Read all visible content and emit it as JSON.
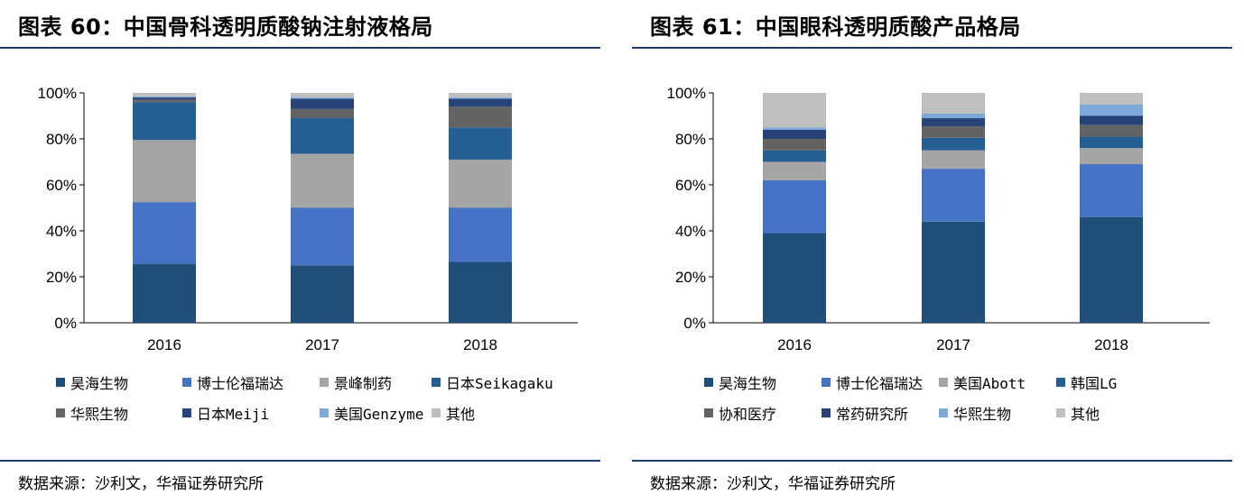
{
  "left": {
    "title": "图表 60：中国骨科透明质酸钠注射液格局",
    "source": "数据来源：沙利文，华福证券研究所",
    "chart_data": {
      "type": "bar",
      "stacked": true,
      "categories": [
        "2016",
        "2017",
        "2018"
      ],
      "ylim": [
        0,
        100
      ],
      "yticks": [
        "0%",
        "20%",
        "40%",
        "60%",
        "80%",
        "100%"
      ],
      "series": [
        {
          "name": "昊海生物",
          "color": "#1f4e79",
          "values": [
            25.5,
            25,
            26.5
          ]
        },
        {
          "name": "博士伦福瑞达",
          "color": "#4472c4",
          "values": [
            27,
            25,
            23.5
          ]
        },
        {
          "name": "景峰制药",
          "color": "#a5a5a5",
          "values": [
            27,
            23.5,
            21
          ]
        },
        {
          "name": "日本Seikagaku",
          "color": "#255e91",
          "values": [
            16.5,
            15.5,
            14
          ]
        },
        {
          "name": "华熙生物",
          "color": "#636363",
          "values": [
            1,
            4,
            9
          ]
        },
        {
          "name": "日本Meiji",
          "color": "#264478",
          "values": [
            1,
            4.5,
            3.5
          ]
        },
        {
          "name": "美国Genzyme",
          "color": "#7fa9d9",
          "values": [
            0.5,
            0.5,
            0.5
          ]
        },
        {
          "name": "其他",
          "color": "#bfbfbf",
          "values": [
            1.5,
            2,
            2
          ]
        }
      ]
    }
  },
  "right": {
    "title": "图表 61：中国眼科透明质酸产品格局",
    "source": "数据来源：沙利文，华福证券研究所",
    "chart_data": {
      "type": "bar",
      "stacked": true,
      "categories": [
        "2016",
        "2017",
        "2018"
      ],
      "ylim": [
        0,
        100
      ],
      "yticks": [
        "0%",
        "20%",
        "40%",
        "60%",
        "80%",
        "100%"
      ],
      "series": [
        {
          "name": "昊海生物",
          "color": "#1f4e79",
          "values": [
            39,
            44,
            46
          ]
        },
        {
          "name": "博士伦福瑞达",
          "color": "#4472c4",
          "values": [
            23,
            23,
            23
          ]
        },
        {
          "name": "美国Abott",
          "color": "#a5a5a5",
          "values": [
            8,
            8,
            7
          ]
        },
        {
          "name": "韩国LG",
          "color": "#255e91",
          "values": [
            5,
            5.5,
            5
          ]
        },
        {
          "name": "协和医疗",
          "color": "#636363",
          "values": [
            5,
            5,
            5
          ]
        },
        {
          "name": "常药研究所",
          "color": "#264478",
          "values": [
            4,
            3.5,
            4
          ]
        },
        {
          "name": "华熙生物",
          "color": "#7fa9d9",
          "values": [
            1,
            2,
            5
          ]
        },
        {
          "name": "其他",
          "color": "#bfbfbf",
          "values": [
            15,
            9,
            5
          ]
        }
      ]
    }
  }
}
